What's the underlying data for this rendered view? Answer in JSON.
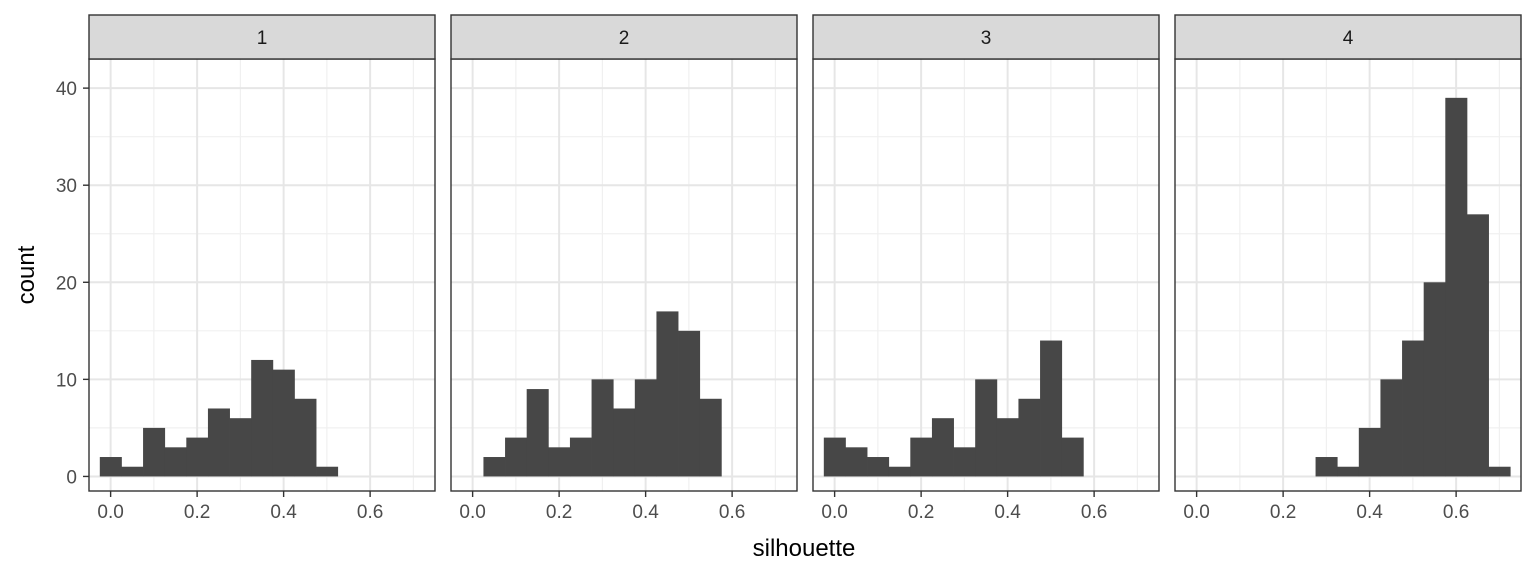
{
  "chart_data": {
    "type": "bar",
    "subtype": "histogram-facets",
    "xlabel": "silhouette",
    "ylabel": "count",
    "x_ticks": [
      "0.0",
      "0.2",
      "0.4",
      "0.6"
    ],
    "y_ticks": [
      "0",
      "10",
      "20",
      "30",
      "40"
    ],
    "xlim": [
      -0.05,
      0.75
    ],
    "ylim": [
      -1.5,
      43
    ],
    "bin_width": 0.05,
    "grid": true,
    "bar_color": "#474747",
    "strip_color": "#d9d9d9",
    "facets": [
      {
        "label": "1",
        "bins": [
          {
            "x0": -0.025,
            "count": 2
          },
          {
            "x0": 0.025,
            "count": 1
          },
          {
            "x0": 0.075,
            "count": 5
          },
          {
            "x0": 0.125,
            "count": 3
          },
          {
            "x0": 0.175,
            "count": 4
          },
          {
            "x0": 0.225,
            "count": 7
          },
          {
            "x0": 0.275,
            "count": 6
          },
          {
            "x0": 0.325,
            "count": 12
          },
          {
            "x0": 0.375,
            "count": 11
          },
          {
            "x0": 0.425,
            "count": 8
          },
          {
            "x0": 0.475,
            "count": 1
          }
        ]
      },
      {
        "label": "2",
        "bins": [
          {
            "x0": 0.025,
            "count": 2
          },
          {
            "x0": 0.075,
            "count": 4
          },
          {
            "x0": 0.125,
            "count": 9
          },
          {
            "x0": 0.175,
            "count": 3
          },
          {
            "x0": 0.225,
            "count": 4
          },
          {
            "x0": 0.275,
            "count": 10
          },
          {
            "x0": 0.325,
            "count": 7
          },
          {
            "x0": 0.375,
            "count": 10
          },
          {
            "x0": 0.425,
            "count": 17
          },
          {
            "x0": 0.475,
            "count": 15
          },
          {
            "x0": 0.525,
            "count": 8
          }
        ]
      },
      {
        "label": "3",
        "bins": [
          {
            "x0": -0.025,
            "count": 4
          },
          {
            "x0": 0.025,
            "count": 3
          },
          {
            "x0": 0.075,
            "count": 2
          },
          {
            "x0": 0.125,
            "count": 1
          },
          {
            "x0": 0.175,
            "count": 4
          },
          {
            "x0": 0.225,
            "count": 6
          },
          {
            "x0": 0.275,
            "count": 3
          },
          {
            "x0": 0.325,
            "count": 10
          },
          {
            "x0": 0.375,
            "count": 6
          },
          {
            "x0": 0.425,
            "count": 8
          },
          {
            "x0": 0.475,
            "count": 14
          },
          {
            "x0": 0.525,
            "count": 4
          }
        ]
      },
      {
        "label": "4",
        "bins": [
          {
            "x0": 0.275,
            "count": 2
          },
          {
            "x0": 0.325,
            "count": 1
          },
          {
            "x0": 0.375,
            "count": 5
          },
          {
            "x0": 0.425,
            "count": 10
          },
          {
            "x0": 0.475,
            "count": 14
          },
          {
            "x0": 0.525,
            "count": 20
          },
          {
            "x0": 0.575,
            "count": 39
          },
          {
            "x0": 0.625,
            "count": 27
          },
          {
            "x0": 0.675,
            "count": 1
          }
        ]
      }
    ]
  }
}
